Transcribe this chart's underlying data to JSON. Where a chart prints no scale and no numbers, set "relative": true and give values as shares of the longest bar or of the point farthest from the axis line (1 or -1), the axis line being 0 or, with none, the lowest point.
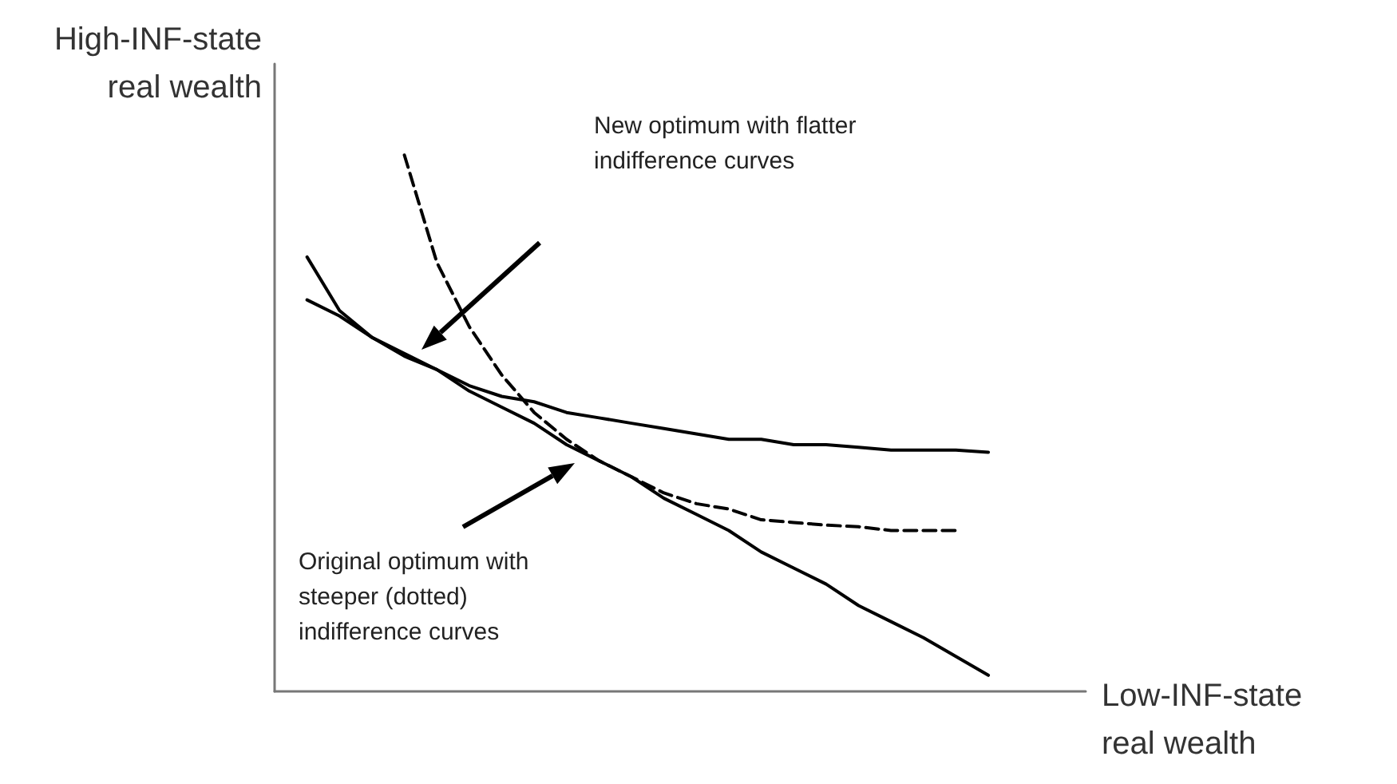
{
  "chart_data": {
    "type": "line",
    "relative": true,
    "marker": "none",
    "xlabel": "Low-INF-state real wealth",
    "ylabel": "High-INF-state real wealth",
    "categories": [
      null,
      null,
      null,
      null,
      null,
      null,
      null,
      null,
      null,
      null,
      null,
      null,
      null,
      null,
      null,
      null,
      null,
      null,
      null,
      null,
      null,
      null,
      null,
      null,
      null,
      null
    ],
    "series": [
      {
        "color": "#000000",
        "line_style": "solid",
        "values": [
          null,
          0.73,
          0.7,
          0.66,
          0.63,
          0.6,
          0.56,
          0.53,
          0.5,
          0.46,
          0.43,
          0.4,
          0.36,
          0.33,
          0.3,
          0.26,
          0.23,
          0.2,
          0.16,
          0.13,
          0.1,
          0.065,
          0.03,
          null,
          null,
          null
        ]
      },
      {
        "color": "#000000",
        "line_style": "solid",
        "values": [
          null,
          0.81,
          0.71,
          0.66,
          0.625,
          0.6,
          0.57,
          0.55,
          0.54,
          0.52,
          0.51,
          0.5,
          0.49,
          0.48,
          0.47,
          0.47,
          0.46,
          0.46,
          0.455,
          0.45,
          0.45,
          0.45,
          0.446,
          null,
          null,
          null
        ]
      },
      {
        "color": "#000000",
        "line_style": "dashed",
        "values": [
          null,
          null,
          null,
          null,
          1.0,
          0.8,
          0.68,
          0.59,
          0.52,
          0.47,
          0.43,
          0.4,
          0.37,
          0.35,
          0.34,
          0.32,
          0.315,
          0.31,
          0.307,
          0.3,
          0.3,
          0.3,
          null,
          null,
          null,
          null
        ]
      }
    ],
    "annotations": [
      "New optimum with flatter indifference curves",
      "Original optimum with steeper (dotted) indifference curves"
    ]
  }
}
